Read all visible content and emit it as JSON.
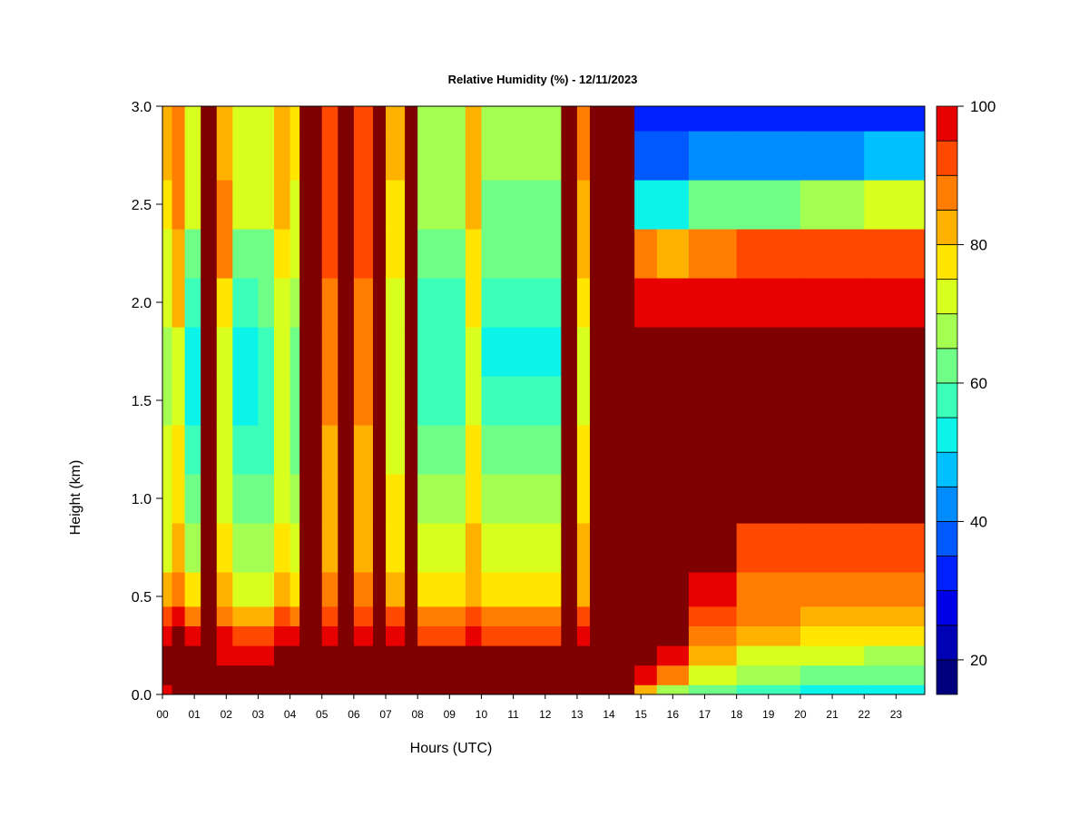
{
  "chart_data": {
    "type": "heatmap",
    "title": "Relative Humidity (%) - 12/11/2023",
    "xlabel": "Hours (UTC)",
    "ylabel": "Height (km)",
    "x_tick_labels": [
      "00",
      "01",
      "02",
      "03",
      "04",
      "05",
      "06",
      "07",
      "08",
      "09",
      "10",
      "11",
      "12",
      "13",
      "14",
      "15",
      "16",
      "17",
      "18",
      "19",
      "20",
      "21",
      "22",
      "23"
    ],
    "y_tick_labels": [
      "0.0",
      "0.5",
      "1.0",
      "1.5",
      "2.0",
      "2.5",
      "3.0"
    ],
    "xlim": [
      0,
      23.9
    ],
    "ylim": [
      0.0,
      3.0
    ],
    "colorbar": {
      "label_values": [
        "20",
        "40",
        "60",
        "80",
        "100"
      ],
      "range": [
        15,
        100
      ],
      "levels": [
        15,
        20,
        25,
        30,
        35,
        40,
        45,
        50,
        55,
        60,
        65,
        70,
        75,
        80,
        85,
        90,
        95,
        100
      ],
      "colors": [
        "#00007f",
        "#0000b4",
        "#0000e8",
        "#0020ff",
        "#0058ff",
        "#008cff",
        "#00c0ff",
        "#0cf4ea",
        "#3cffba",
        "#70ff86",
        "#a4ff52",
        "#d8ff1e",
        "#ffe500",
        "#ffb100",
        "#ff7d00",
        "#ff4900",
        "#e80000",
        "#b40000",
        "#7f0000"
      ]
    },
    "grid": false,
    "legend": "colorbar-right",
    "profile_heights_km": [
      0.0,
      0.1,
      0.2,
      0.3,
      0.4,
      0.5,
      0.75,
      1.0,
      1.25,
      1.5,
      1.75,
      2.0,
      2.25,
      2.5,
      2.75,
      3.0
    ],
    "segments": [
      {
        "start": 0.0,
        "end": 0.3,
        "profile": [
          96,
          100,
          100,
          98,
          92,
          80,
          72,
          70,
          70,
          68,
          67,
          70,
          74,
          78,
          80,
          80
        ]
      },
      {
        "start": 0.3,
        "end": 0.7,
        "profile": [
          100,
          100,
          100,
          100,
          95,
          88,
          80,
          76,
          76,
          74,
          74,
          80,
          82,
          85,
          86,
          86
        ]
      },
      {
        "start": 0.7,
        "end": 1.2,
        "profile": [
          100,
          100,
          100,
          95,
          86,
          76,
          68,
          62,
          58,
          54,
          52,
          58,
          64,
          70,
          72,
          72
        ]
      },
      {
        "start": 1.2,
        "end": 1.7,
        "profile": [
          100,
          100,
          100,
          100,
          100,
          100,
          100,
          100,
          100,
          100,
          100,
          100,
          100,
          100,
          100,
          100
        ]
      },
      {
        "start": 1.7,
        "end": 2.2,
        "profile": [
          100,
          100,
          98,
          95,
          88,
          82,
          78,
          74,
          72,
          70,
          70,
          76,
          86,
          88,
          84,
          82
        ]
      },
      {
        "start": 2.2,
        "end": 3.0,
        "profile": [
          100,
          100,
          98,
          92,
          84,
          74,
          66,
          62,
          58,
          54,
          54,
          58,
          64,
          70,
          72,
          72
        ]
      },
      {
        "start": 3.0,
        "end": 3.5,
        "profile": [
          100,
          100,
          98,
          92,
          84,
          74,
          66,
          62,
          58,
          56,
          56,
          60,
          64,
          70,
          72,
          72
        ]
      },
      {
        "start": 3.5,
        "end": 4.0,
        "profile": [
          100,
          100,
          100,
          95,
          90,
          84,
          78,
          74,
          72,
          70,
          70,
          74,
          78,
          82,
          82,
          82
        ]
      },
      {
        "start": 4.0,
        "end": 4.3,
        "profile": [
          100,
          100,
          100,
          96,
          88,
          76,
          70,
          66,
          64,
          62,
          62,
          66,
          70,
          74,
          76,
          76
        ]
      },
      {
        "start": 4.3,
        "end": 5.0,
        "profile": [
          100,
          100,
          100,
          100,
          100,
          100,
          100,
          100,
          100,
          100,
          100,
          100,
          100,
          100,
          100,
          100
        ]
      },
      {
        "start": 5.0,
        "end": 5.5,
        "profile": [
          100,
          100,
          100,
          98,
          92,
          86,
          82,
          82,
          84,
          86,
          86,
          88,
          90,
          92,
          92,
          92
        ]
      },
      {
        "start": 5.5,
        "end": 6.0,
        "profile": [
          100,
          100,
          100,
          100,
          100,
          100,
          100,
          100,
          100,
          100,
          100,
          100,
          100,
          100,
          100,
          100
        ]
      },
      {
        "start": 6.0,
        "end": 6.6,
        "profile": [
          100,
          100,
          100,
          98,
          94,
          86,
          84,
          82,
          84,
          86,
          86,
          88,
          90,
          90,
          90,
          90
        ]
      },
      {
        "start": 6.6,
        "end": 7.0,
        "profile": [
          100,
          100,
          100,
          100,
          100,
          100,
          100,
          100,
          100,
          100,
          100,
          100,
          100,
          100,
          100,
          100
        ]
      },
      {
        "start": 7.0,
        "end": 7.6,
        "profile": [
          100,
          100,
          100,
          96,
          90,
          82,
          78,
          76,
          74,
          72,
          72,
          74,
          76,
          78,
          80,
          80
        ]
      },
      {
        "start": 7.6,
        "end": 8.0,
        "profile": [
          100,
          100,
          100,
          100,
          100,
          100,
          100,
          100,
          100,
          100,
          100,
          100,
          100,
          100,
          100,
          100
        ]
      },
      {
        "start": 8.0,
        "end": 9.5,
        "profile": [
          100,
          100,
          100,
          94,
          86,
          78,
          72,
          66,
          62,
          58,
          56,
          58,
          62,
          66,
          68,
          68
        ]
      },
      {
        "start": 9.5,
        "end": 10.0,
        "profile": [
          100,
          100,
          100,
          96,
          90,
          84,
          80,
          78,
          76,
          74,
          74,
          76,
          78,
          80,
          80,
          80
        ]
      },
      {
        "start": 10.0,
        "end": 12.5,
        "profile": [
          100,
          100,
          100,
          94,
          86,
          78,
          72,
          66,
          60,
          56,
          54,
          56,
          60,
          64,
          66,
          66
        ]
      },
      {
        "start": 12.5,
        "end": 13.0,
        "profile": [
          100,
          100,
          100,
          100,
          100,
          100,
          100,
          100,
          100,
          100,
          100,
          100,
          100,
          100,
          100,
          100
        ]
      },
      {
        "start": 13.0,
        "end": 13.4,
        "profile": [
          100,
          100,
          100,
          96,
          90,
          84,
          80,
          78,
          76,
          74,
          74,
          76,
          80,
          84,
          86,
          86
        ]
      },
      {
        "start": 13.4,
        "end": 14.8,
        "profile": [
          100,
          100,
          100,
          100,
          100,
          100,
          100,
          100,
          100,
          100,
          100,
          100,
          100,
          100,
          100,
          100
        ]
      },
      {
        "start": 14.8,
        "end": 15.5,
        "profile": [
          82,
          96,
          100,
          100,
          100,
          100,
          100,
          100,
          100,
          100,
          100,
          96,
          86,
          50,
          38,
          30
        ]
      },
      {
        "start": 15.5,
        "end": 16.5,
        "profile": [
          68,
          86,
          96,
          100,
          100,
          100,
          100,
          100,
          100,
          100,
          100,
          96,
          84,
          52,
          38,
          30
        ]
      },
      {
        "start": 16.5,
        "end": 18.0,
        "profile": [
          62,
          74,
          82,
          88,
          92,
          96,
          100,
          100,
          100,
          100,
          100,
          96,
          88,
          60,
          42,
          30
        ]
      },
      {
        "start": 18.0,
        "end": 20.0,
        "profile": [
          56,
          66,
          74,
          82,
          86,
          88,
          92,
          100,
          100,
          100,
          100,
          96,
          90,
          62,
          42,
          30
        ]
      },
      {
        "start": 20.0,
        "end": 22.0,
        "profile": [
          52,
          62,
          70,
          78,
          84,
          86,
          90,
          100,
          100,
          100,
          100,
          96,
          90,
          66,
          44,
          32
        ]
      },
      {
        "start": 22.0,
        "end": 23.9,
        "profile": [
          50,
          60,
          68,
          76,
          82,
          86,
          90,
          100,
          100,
          100,
          100,
          96,
          92,
          72,
          46,
          34
        ]
      }
    ]
  }
}
